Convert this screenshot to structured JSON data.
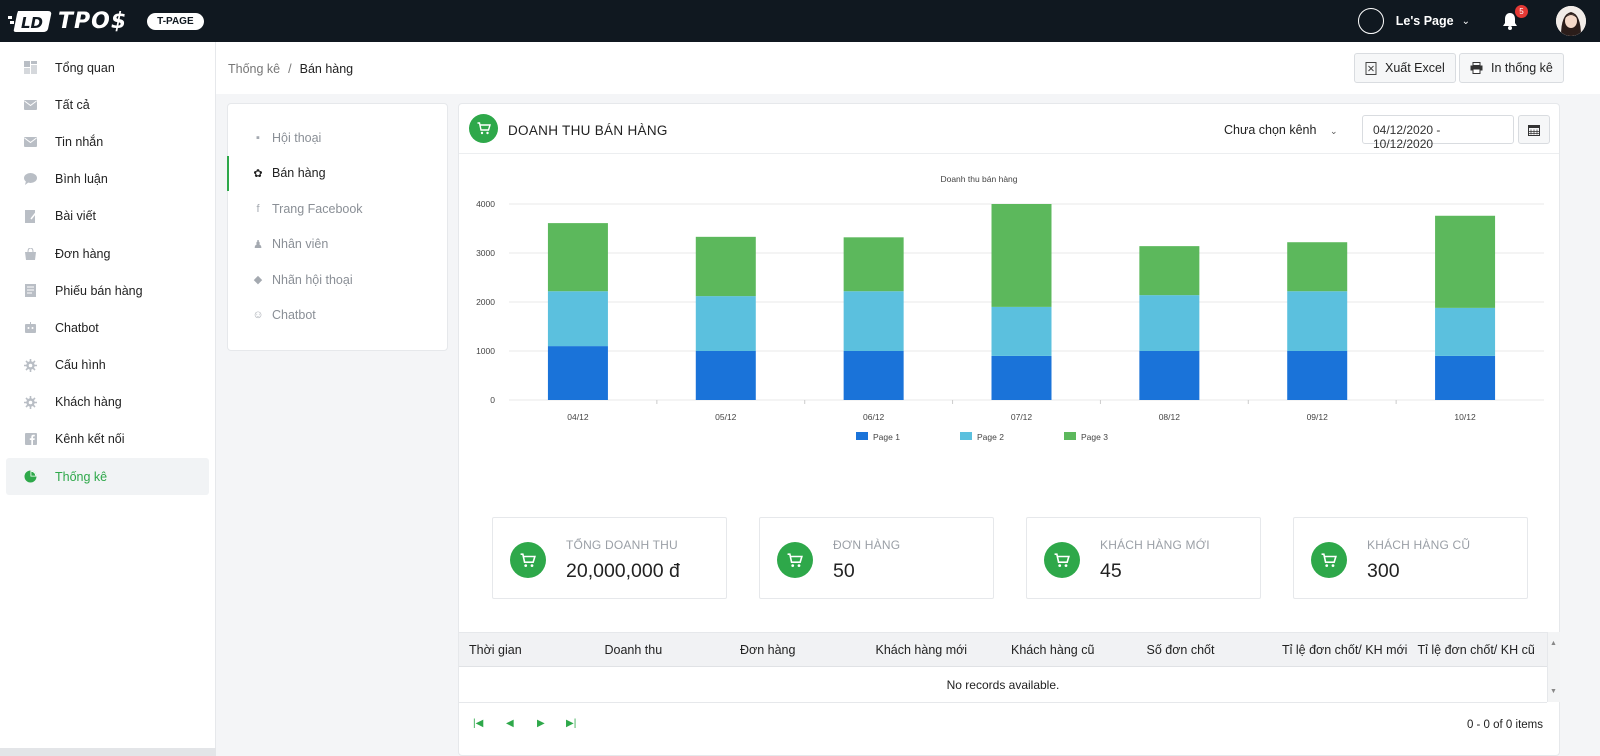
{
  "brand": {
    "logo_text": "TPO$",
    "badge": "T-PAGE"
  },
  "topbar": {
    "page_name": "Le's Page",
    "notification_count": "5"
  },
  "sidebar": {
    "items": [
      {
        "label": "Tổng quan",
        "icon": "dashboard-icon"
      },
      {
        "label": "Tất cả",
        "icon": "mail-icon"
      },
      {
        "label": "Tin nhắn",
        "icon": "envelope-icon"
      },
      {
        "label": "Bình luận",
        "icon": "comment-icon"
      },
      {
        "label": "Bài viết",
        "icon": "edit-icon"
      },
      {
        "label": "Đơn hàng",
        "icon": "bag-icon"
      },
      {
        "label": "Phiếu bán hàng",
        "icon": "receipt-icon"
      },
      {
        "label": "Chatbot",
        "icon": "robot-icon"
      },
      {
        "label": "Cấu hình",
        "icon": "gear-icon"
      },
      {
        "label": "Khách hàng",
        "icon": "gear-icon"
      },
      {
        "label": "Kênh kết nối",
        "icon": "facebook-icon"
      },
      {
        "label": "Thống kê",
        "icon": "pie-chart-icon",
        "active": true
      }
    ]
  },
  "breadcrumb": {
    "parent": "Thống kê",
    "separator": "/",
    "current": "Bán hàng"
  },
  "actions": {
    "export_excel": "Xuất Excel",
    "print_stats": "In thống kê"
  },
  "submenu": {
    "items": [
      {
        "label": "Hội thoại",
        "glyph": "▪"
      },
      {
        "label": "Bán hàng",
        "glyph": "✿",
        "active": true
      },
      {
        "label": "Trang Facebook",
        "glyph": "f"
      },
      {
        "label": "Nhân viên",
        "glyph": "♟"
      },
      {
        "label": "Nhãn hội thoại",
        "glyph": "◆"
      },
      {
        "label": "Chatbot",
        "glyph": "☺"
      }
    ]
  },
  "panel": {
    "title": "DOANH THU BÁN HÀNG",
    "channel_select": "Chưa chọn kênh",
    "date_range": "04/12/2020 - 10/12/2020"
  },
  "chart_data": {
    "type": "bar",
    "stacked": true,
    "title": "Doanh thu bán hàng",
    "categories": [
      "04/12",
      "05/12",
      "06/12",
      "07/12",
      "08/12",
      "09/12",
      "10/12"
    ],
    "series": [
      {
        "name": "Page 1",
        "color": "#1a73d9",
        "values": [
          1100,
          1000,
          1000,
          900,
          1000,
          1000,
          900
        ]
      },
      {
        "name": "Page 2",
        "color": "#5bc0de",
        "values": [
          1120,
          1120,
          1220,
          1000,
          1140,
          1220,
          980
        ]
      },
      {
        "name": "Page 3",
        "color": "#5cb85c",
        "values": [
          1390,
          1210,
          1100,
          2100,
          1000,
          1000,
          1880
        ]
      }
    ],
    "ylim": [
      0,
      4000
    ],
    "yticks": [
      "0",
      "1000",
      "2000",
      "3000",
      "4000"
    ],
    "grid": true,
    "legend": "bottom"
  },
  "stats": [
    {
      "label": "TỔNG DOANH THU",
      "value": "20,000,000 đ"
    },
    {
      "label": "ĐƠN HÀNG",
      "value": "50"
    },
    {
      "label": "KHÁCH HÀNG MỚI",
      "value": "45"
    },
    {
      "label": "KHÁCH HÀNG CŨ",
      "value": "300"
    }
  ],
  "table": {
    "columns": [
      "Thời gian",
      "Doanh thu",
      "Đơn hàng",
      "Khách hàng mới",
      "Khách hàng cũ",
      "Số đơn chốt",
      "Tỉ lệ đơn chốt/ KH mới",
      "Tỉ lệ đơn chốt/ KH cũ"
    ],
    "empty_message": "No records available.",
    "pager_info": "0 - 0 of 0 items"
  },
  "colors": {
    "accent": "#2ea84a",
    "topbar": "#101820"
  }
}
